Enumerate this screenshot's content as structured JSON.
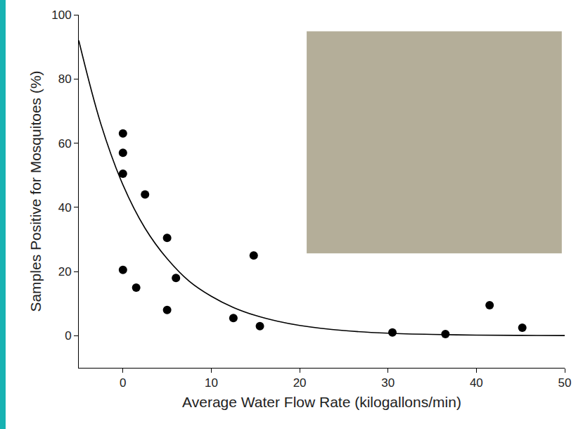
{
  "chart_data": {
    "type": "scatter",
    "x_label": "Average Water Flow Rate (kilogallons/min)",
    "y_label": "Samples Positive for Mosquitoes (%)",
    "xlim": [
      -5,
      50
    ],
    "xticks": [
      0,
      10,
      20,
      30,
      40,
      50
    ],
    "ylim": [
      -10,
      100
    ],
    "yticks": [
      0,
      20,
      40,
      60,
      80,
      100
    ],
    "grid": false,
    "series": [
      {
        "type": "scatter",
        "marker": "circle",
        "color": "#000000",
        "x": [
          0,
          0,
          0,
          2.5,
          5,
          0,
          1.5,
          6,
          5,
          12.5,
          14.8,
          15.5,
          30.5,
          36.5,
          41.5,
          45.2
        ],
        "values": [
          63,
          57,
          50.5,
          44,
          30.5,
          20.5,
          15,
          18,
          8,
          5.5,
          25,
          3,
          1,
          0.5,
          9.5,
          2.5
        ]
      },
      {
        "type": "line",
        "line_style": "solid",
        "color": "#000000",
        "x": [
          -5,
          -2.5,
          0,
          2.5,
          5,
          7.5,
          10,
          12.5,
          15,
          17.5,
          20,
          25,
          30,
          35,
          40,
          45,
          50
        ],
        "values": [
          92,
          66,
          47,
          33.5,
          24,
          17,
          12.3,
          8.8,
          6.3,
          4.5,
          3.2,
          1.6,
          0.8,
          0.4,
          0.2,
          0.1,
          0.05
        ]
      }
    ]
  }
}
